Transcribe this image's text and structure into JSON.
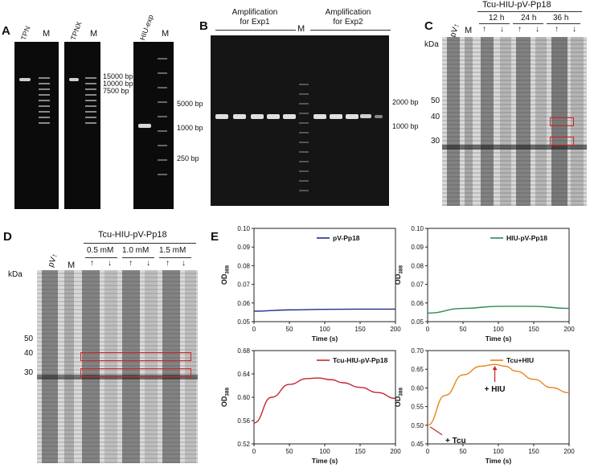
{
  "panel_letters": {
    "a": "A",
    "b": "B",
    "c": "C",
    "d": "D",
    "e": "E"
  },
  "panelA": {
    "lanes": {
      "tpn": "TPN",
      "m1": "M",
      "tpnx": "TPNX",
      "m2": "M",
      "hiu_exp": "HIU-exp",
      "m3": "M"
    },
    "markers_left": [
      "15000 bp",
      "10000 bp",
      "7500 bp"
    ],
    "markers_right": [
      "5000 bp",
      "1000 bp",
      "250 bp"
    ]
  },
  "panelB": {
    "group1": "Amplification\nfor Exp1",
    "group1_l1": "Amplification",
    "group1_l2": "for Exp1",
    "group2_l1": "Amplification",
    "group2_l2": "for Exp2",
    "m": "M",
    "markers": [
      "2000 bp",
      "1000 bp"
    ]
  },
  "panelC": {
    "title": "Tcu-HIU-pV-Pp18",
    "times": [
      "12 h",
      "24 h",
      "36 h"
    ],
    "pv": "pV↑",
    "m": "M",
    "kda": "kDa",
    "mw": [
      "50",
      "40",
      "30"
    ],
    "arrows": [
      "↑",
      "↓",
      "↑",
      "↓",
      "↑",
      "↓"
    ]
  },
  "panelD": {
    "title": "Tcu-HIU-pV-Pp18",
    "conc": [
      "0.5 mM",
      "1.0 mM",
      "1.5 mM"
    ],
    "pv": "pV↑",
    "m": "M",
    "kda": "kDa",
    "mw": [
      "50",
      "40",
      "30"
    ],
    "arrows": [
      "↑",
      "↓",
      "↑",
      "↓",
      "↑",
      "↓"
    ]
  },
  "chart_data": [
    {
      "type": "line",
      "series": [
        {
          "name": "pV-Pp18",
          "color": "#1f2f8f",
          "x": [
            0,
            50,
            100,
            150,
            200
          ],
          "y": [
            0.0556,
            0.0563,
            0.0566,
            0.0567,
            0.0567
          ]
        }
      ],
      "xlabel": "Time (s)",
      "ylabel": "OD388",
      "xlim": [
        0,
        200
      ],
      "ylim": [
        0.05,
        0.1
      ],
      "xticks": [
        "0",
        "50",
        "100",
        "150",
        "200"
      ],
      "yticks": [
        "0.05",
        "0.06",
        "0.07",
        "0.08",
        "0.09",
        "0.10"
      ]
    },
    {
      "type": "line",
      "series": [
        {
          "name": "HIU-pV-Pp18",
          "color": "#2e8b57",
          "x": [
            0,
            50,
            100,
            150,
            200
          ],
          "y": [
            0.0546,
            0.0571,
            0.0582,
            0.0582,
            0.0571
          ]
        }
      ],
      "xlabel": "Time (s)",
      "ylabel": "OD388",
      "xlim": [
        0,
        200
      ],
      "ylim": [
        0.05,
        0.1
      ],
      "xticks": [
        "0",
        "50",
        "100",
        "150",
        "200"
      ],
      "yticks": [
        "0.05",
        "0.06",
        "0.07",
        "0.08",
        "0.09",
        "0.10"
      ]
    },
    {
      "type": "line",
      "series": [
        {
          "name": "Tcu-HIU-pV-Pp18",
          "color": "#c0282d",
          "x": [
            0,
            25,
            50,
            75,
            90,
            110,
            125,
            150,
            175,
            200
          ],
          "y": [
            0.556,
            0.6,
            0.622,
            0.632,
            0.633,
            0.63,
            0.625,
            0.617,
            0.608,
            0.598
          ]
        }
      ],
      "xlabel": "Time (s)",
      "ylabel": "OD388",
      "xlim": [
        0,
        200
      ],
      "ylim": [
        0.52,
        0.68
      ],
      "xticks": [
        "0",
        "50",
        "100",
        "150",
        "200"
      ],
      "yticks": [
        "0.52",
        "0.56",
        "0.60",
        "0.64",
        "0.68"
      ]
    },
    {
      "type": "line",
      "series": [
        {
          "name": "Tcu+HIU",
          "color": "#e8841a",
          "x": [
            0,
            25,
            50,
            75,
            95,
            110,
            125,
            150,
            175,
            200
          ],
          "y": [
            0.5,
            0.58,
            0.635,
            0.658,
            0.663,
            0.658,
            0.645,
            0.623,
            0.601,
            0.587
          ]
        }
      ],
      "xlabel": "Time (s)",
      "ylabel": "OD388",
      "xlim": [
        0,
        200
      ],
      "ylim": [
        0.45,
        0.7
      ],
      "xticks": [
        "0",
        "50",
        "100",
        "150",
        "200"
      ],
      "yticks": [
        "0.45",
        "0.50",
        "0.55",
        "0.60",
        "0.65",
        "0.70"
      ],
      "annotations": [
        {
          "text": "+ HIU",
          "x": 95,
          "y": 0.663
        },
        {
          "text": "+ Tcu",
          "x": 0,
          "y": 0.5
        }
      ]
    }
  ]
}
